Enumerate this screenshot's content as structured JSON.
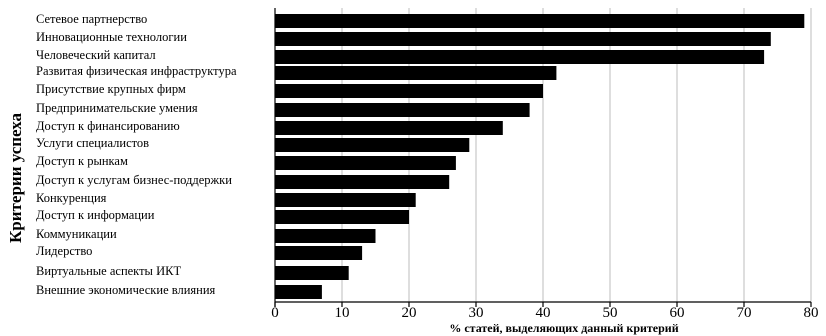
{
  "chart_data": {
    "type": "bar",
    "orientation": "horizontal",
    "categories": [
      "Сетевое партнерство",
      "Инновационные технологии",
      "Человеческий капитал",
      "Развитая физическая инфраструктура",
      "Присутствие крупных фирм",
      "Предпринимательские умения",
      "Доступ к финансированию",
      "Услуги специалистов",
      "Доступ к рынкам",
      "Доступ к услугам бизнес-поддержки",
      "Конкуренция",
      "Доступ к информации",
      "Коммуникации",
      "Лидерство",
      "Виртуальные аспекты ИКТ",
      "Внешние экономические влияния"
    ],
    "values": [
      79,
      74,
      73,
      42,
      40,
      38,
      34,
      29,
      27,
      26,
      21,
      20,
      15,
      13,
      11,
      7
    ],
    "xticks": [
      "0",
      "10",
      "20",
      "30",
      "40",
      "50",
      "60",
      "70",
      "80"
    ],
    "xlim": [
      0,
      80
    ],
    "xlabel": "% статей, выделяющих данный критерий",
    "ylabel": "Критерии успеха",
    "grid": true,
    "colors": {
      "bar": "#000000",
      "grid": "#bdbdbd",
      "axis": "#000000"
    }
  }
}
